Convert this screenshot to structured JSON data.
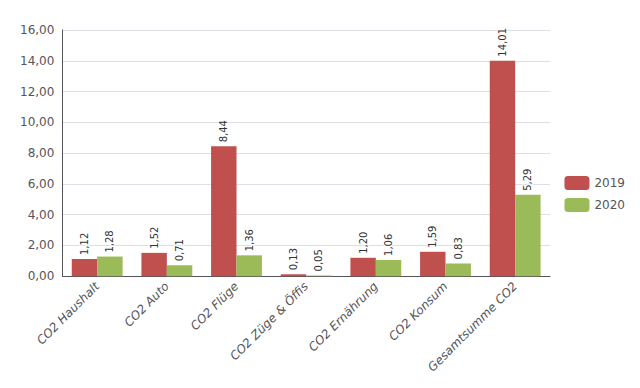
{
  "chart_data": {
    "type": "bar",
    "categories": [
      "CO2 Haushalt",
      "CO2 Auto",
      "CO2 Flüge",
      "CO2 Züge & Öffis",
      "CO2 Ernährung",
      "CO2 Konsum",
      "Gesamtsumme CO2"
    ],
    "series": [
      {
        "name": "2019",
        "color": "#c0504d",
        "values": [
          1.12,
          1.52,
          8.44,
          0.13,
          1.2,
          1.59,
          14.01
        ],
        "value_labels": [
          "1,12",
          "1,52",
          "8,44",
          "0,13",
          "1,20",
          "1,59",
          "14,01"
        ]
      },
      {
        "name": "2020",
        "color": "#9bbb59",
        "values": [
          1.28,
          0.71,
          1.36,
          0.05,
          1.06,
          0.83,
          5.29
        ],
        "value_labels": [
          "1,28",
          "0,71",
          "1,36",
          "0,05",
          "1,06",
          "0,83",
          "5,29"
        ]
      }
    ],
    "ylim": [
      0,
      16
    ],
    "yticks": [
      {
        "value": 0,
        "label": "0,00"
      },
      {
        "value": 2,
        "label": "2,00"
      },
      {
        "value": 4,
        "label": "4,00"
      },
      {
        "value": 6,
        "label": "6,00"
      },
      {
        "value": 8,
        "label": "8,00"
      },
      {
        "value": 10,
        "label": "10,00"
      },
      {
        "value": 12,
        "label": "12,00"
      },
      {
        "value": 14,
        "label": "14,00"
      },
      {
        "value": 16,
        "label": "16,00"
      }
    ],
    "grid": true,
    "legend": "right",
    "data_labels": true
  }
}
